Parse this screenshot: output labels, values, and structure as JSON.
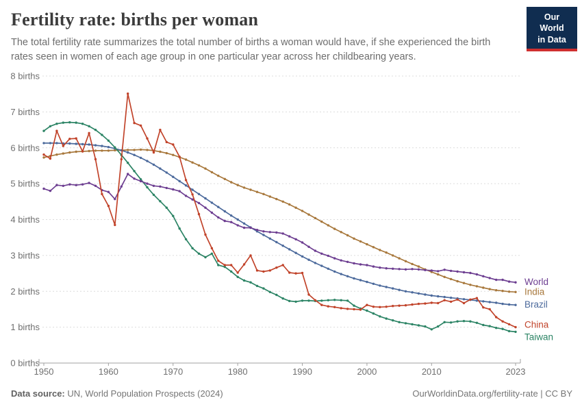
{
  "header": {
    "title": "Fertility rate: births per woman",
    "subtitle": "The total fertility rate summarizes the total number of births a woman would have, if she experienced the birth rates seen in women of each age group in one particular year across her childbearing years.",
    "logo": {
      "line1": "Our World",
      "line2": "in Data"
    }
  },
  "footer": {
    "source_label": "Data source:",
    "source_value": " UN, World Population Prospects (2024)",
    "attribution": "OurWorldinData.org/fertility-rate | CC BY"
  },
  "colors": {
    "world": "#6d3e91",
    "india": "#a8783c",
    "brazil": "#4c6a9c",
    "china": "#c1432a",
    "taiwan": "#2c8465",
    "grid": "#dcdcdc",
    "axis": "#a1a1a1",
    "axis_text": "#6f6f6f",
    "logo_bg": "#102d50",
    "logo_bar": "#cf2f2f"
  },
  "chart_data": {
    "type": "line",
    "title": "Fertility rate: births per woman",
    "xlabel": "",
    "ylabel": "births",
    "xlim": [
      1950,
      2023
    ],
    "ylim": [
      0,
      8
    ],
    "grid": "horizontal dashed",
    "legend_position": "right end-of-line labels",
    "markers": true,
    "x_ticks": [
      1950,
      1960,
      1970,
      1980,
      1990,
      2000,
      2010,
      2023
    ],
    "x_tick_labels": [
      "1950",
      "1960",
      "1970",
      "1980",
      "1990",
      "2000",
      "2010",
      "2023"
    ],
    "y_ticks": [
      0,
      1,
      2,
      3,
      4,
      5,
      6,
      7,
      8
    ],
    "y_tick_labels": [
      "0 births",
      "1 births",
      "2 births",
      "3 births",
      "4 births",
      "5 births",
      "6 births",
      "7 births",
      "8 births"
    ],
    "x": [
      1950,
      1951,
      1952,
      1953,
      1954,
      1955,
      1956,
      1957,
      1958,
      1959,
      1960,
      1961,
      1962,
      1963,
      1964,
      1965,
      1966,
      1967,
      1968,
      1969,
      1970,
      1971,
      1972,
      1973,
      1974,
      1975,
      1976,
      1977,
      1978,
      1979,
      1980,
      1981,
      1982,
      1983,
      1984,
      1985,
      1986,
      1987,
      1988,
      1989,
      1990,
      1991,
      1992,
      1993,
      1994,
      1995,
      1996,
      1997,
      1998,
      1999,
      2000,
      2001,
      2002,
      2003,
      2004,
      2005,
      2006,
      2007,
      2008,
      2009,
      2010,
      2011,
      2012,
      2013,
      2014,
      2015,
      2016,
      2017,
      2018,
      2019,
      2020,
      2021,
      2022,
      2023
    ],
    "series": [
      {
        "name": "World",
        "color": "#6d3e91",
        "values": [
          4.86,
          4.8,
          4.96,
          4.94,
          4.98,
          4.96,
          4.98,
          5.02,
          4.94,
          4.82,
          4.77,
          4.57,
          4.92,
          5.27,
          5.14,
          5.07,
          5.0,
          4.94,
          4.92,
          4.88,
          4.84,
          4.79,
          4.66,
          4.56,
          4.46,
          4.33,
          4.19,
          4.06,
          3.96,
          3.93,
          3.84,
          3.77,
          3.77,
          3.71,
          3.67,
          3.65,
          3.64,
          3.61,
          3.53,
          3.45,
          3.36,
          3.24,
          3.13,
          3.05,
          2.99,
          2.92,
          2.86,
          2.82,
          2.78,
          2.75,
          2.73,
          2.69,
          2.66,
          2.64,
          2.63,
          2.62,
          2.61,
          2.62,
          2.61,
          2.59,
          2.58,
          2.56,
          2.6,
          2.57,
          2.55,
          2.53,
          2.51,
          2.47,
          2.42,
          2.37,
          2.32,
          2.32,
          2.27,
          2.25
        ]
      },
      {
        "name": "India",
        "color": "#a8783c",
        "values": [
          5.73,
          5.77,
          5.81,
          5.84,
          5.87,
          5.89,
          5.9,
          5.91,
          5.92,
          5.92,
          5.92,
          5.93,
          5.93,
          5.94,
          5.94,
          5.95,
          5.94,
          5.92,
          5.89,
          5.85,
          5.8,
          5.74,
          5.67,
          5.59,
          5.51,
          5.42,
          5.32,
          5.22,
          5.13,
          5.04,
          4.96,
          4.89,
          4.83,
          4.77,
          4.71,
          4.64,
          4.57,
          4.5,
          4.42,
          4.33,
          4.24,
          4.14,
          4.04,
          3.94,
          3.84,
          3.74,
          3.65,
          3.56,
          3.47,
          3.39,
          3.31,
          3.23,
          3.15,
          3.08,
          3.0,
          2.92,
          2.84,
          2.76,
          2.69,
          2.61,
          2.54,
          2.47,
          2.4,
          2.34,
          2.28,
          2.23,
          2.18,
          2.14,
          2.1,
          2.06,
          2.03,
          2.01,
          1.99,
          1.98
        ]
      },
      {
        "name": "Brazil",
        "color": "#4c6a9c",
        "values": [
          6.13,
          6.13,
          6.13,
          6.12,
          6.12,
          6.11,
          6.1,
          6.09,
          6.07,
          6.05,
          6.02,
          5.98,
          5.93,
          5.87,
          5.8,
          5.72,
          5.63,
          5.53,
          5.42,
          5.31,
          5.19,
          5.07,
          4.95,
          4.83,
          4.71,
          4.59,
          4.47,
          4.35,
          4.23,
          4.11,
          4.0,
          3.89,
          3.78,
          3.67,
          3.57,
          3.47,
          3.37,
          3.27,
          3.17,
          3.07,
          2.97,
          2.88,
          2.79,
          2.71,
          2.63,
          2.55,
          2.48,
          2.42,
          2.36,
          2.31,
          2.26,
          2.21,
          2.16,
          2.12,
          2.08,
          2.04,
          2.0,
          1.97,
          1.94,
          1.91,
          1.88,
          1.86,
          1.84,
          1.82,
          1.8,
          1.78,
          1.76,
          1.74,
          1.72,
          1.7,
          1.68,
          1.65,
          1.63,
          1.62
        ]
      },
      {
        "name": "China",
        "color": "#c1432a",
        "values": [
          5.81,
          5.7,
          6.47,
          6.05,
          6.25,
          6.26,
          5.9,
          6.41,
          5.68,
          4.71,
          4.38,
          3.85,
          5.68,
          7.51,
          6.69,
          6.62,
          6.26,
          5.87,
          6.5,
          6.16,
          6.09,
          5.75,
          5.1,
          4.7,
          4.15,
          3.58,
          3.2,
          2.85,
          2.73,
          2.73,
          2.52,
          2.75,
          3.0,
          2.58,
          2.55,
          2.58,
          2.66,
          2.73,
          2.52,
          2.5,
          2.51,
          1.91,
          1.75,
          1.62,
          1.58,
          1.56,
          1.53,
          1.51,
          1.5,
          1.49,
          1.62,
          1.57,
          1.56,
          1.57,
          1.59,
          1.6,
          1.61,
          1.63,
          1.65,
          1.66,
          1.68,
          1.67,
          1.75,
          1.71,
          1.77,
          1.67,
          1.77,
          1.81,
          1.55,
          1.5,
          1.28,
          1.16,
          1.08,
          1.0
        ]
      },
      {
        "name": "Taiwan",
        "color": "#2c8465",
        "values": [
          6.47,
          6.6,
          6.67,
          6.7,
          6.71,
          6.7,
          6.67,
          6.6,
          6.5,
          6.36,
          6.2,
          6.01,
          5.8,
          5.58,
          5.35,
          5.12,
          4.9,
          4.69,
          4.51,
          4.33,
          4.1,
          3.75,
          3.45,
          3.2,
          3.05,
          2.95,
          3.05,
          2.73,
          2.68,
          2.55,
          2.4,
          2.3,
          2.25,
          2.15,
          2.08,
          1.98,
          1.9,
          1.8,
          1.73,
          1.71,
          1.74,
          1.74,
          1.73,
          1.74,
          1.75,
          1.76,
          1.75,
          1.74,
          1.6,
          1.52,
          1.46,
          1.38,
          1.3,
          1.24,
          1.19,
          1.14,
          1.11,
          1.08,
          1.05,
          1.02,
          0.94,
          1.02,
          1.14,
          1.13,
          1.16,
          1.17,
          1.16,
          1.12,
          1.06,
          1.03,
          0.98,
          0.95,
          0.89,
          0.87
        ]
      }
    ]
  }
}
